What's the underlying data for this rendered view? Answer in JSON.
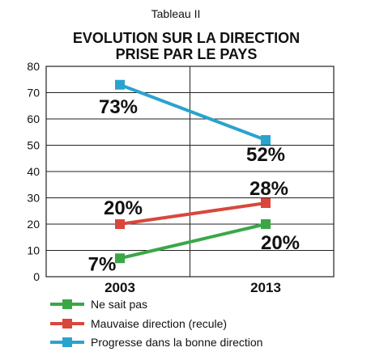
{
  "chart_data": {
    "type": "line",
    "supertitle": "Tableau II",
    "title_lines": [
      "EVOLUTION SUR LA DIRECTION",
      "PRISE PAR LE PAYS"
    ],
    "categories": [
      "2003",
      "2013"
    ],
    "ylim": [
      0,
      80
    ],
    "yticks": [
      0,
      10,
      20,
      30,
      40,
      50,
      60,
      70,
      80
    ],
    "grid": true,
    "legend_position": "bottom-left",
    "series": [
      {
        "name": "Ne sait pas",
        "color": "#3aa747",
        "values": [
          7,
          20
        ],
        "labels": [
          "7%",
          "20%"
        ]
      },
      {
        "name": "Mauvaise direction (recule)",
        "color": "#d9473c",
        "values": [
          20,
          28
        ],
        "labels": [
          "20%",
          "28%"
        ]
      },
      {
        "name": "Progresse dans la bonne direction",
        "color": "#2aa3cf",
        "values": [
          73,
          52
        ],
        "labels": [
          "73%",
          "52%"
        ]
      }
    ]
  }
}
